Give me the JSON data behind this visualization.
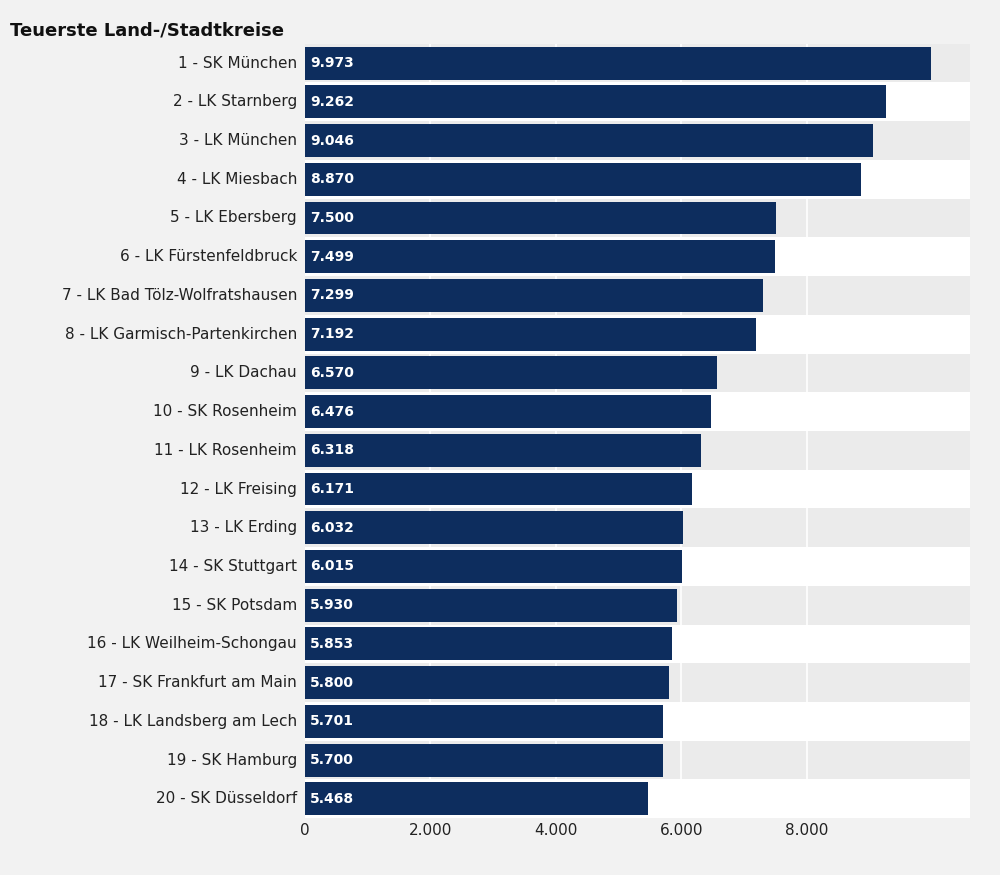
{
  "title": "Teuerste Land-/Stadtkreise",
  "categories": [
    "1 - SK München",
    "2 - LK Starnberg",
    "3 - LK München",
    "4 - LK Miesbach",
    "5 - LK Ebersberg",
    "6 - LK Fürstenfeldbruck",
    "7 - LK Bad Tölz-Wolfratshausen",
    "8 - LK Garmisch-Partenkirchen",
    "9 - LK Dachau",
    "10 - SK Rosenheim",
    "11 - LK Rosenheim",
    "12 - LK Freising",
    "13 - LK Erding",
    "14 - SK Stuttgart",
    "15 - SK Potsdam",
    "16 - LK Weilheim-Schongau",
    "17 - SK Frankfurt am Main",
    "18 - LK Landsberg am Lech",
    "19 - SK Hamburg",
    "20 - SK Düsseldorf"
  ],
  "values": [
    9973,
    9262,
    9046,
    8870,
    7500,
    7499,
    7299,
    7192,
    6570,
    6476,
    6318,
    6171,
    6032,
    6015,
    5930,
    5853,
    5800,
    5701,
    5700,
    5468
  ],
  "value_labels": [
    "9.973",
    "9.262",
    "9.046",
    "8.870",
    "7.500",
    "7.499",
    "7.299",
    "7.192",
    "6.570",
    "6.476",
    "6.318",
    "6.171",
    "6.032",
    "6.015",
    "5.930",
    "5.853",
    "5.800",
    "5.701",
    "5.700",
    "5.468"
  ],
  "bar_color": "#0d2d5e",
  "background_color": "#f2f2f2",
  "bar_row_colors": [
    "#ffffff",
    "#ebebeb"
  ],
  "title_fontsize": 13,
  "label_fontsize": 11,
  "value_fontsize": 10,
  "tick_fontsize": 11,
  "xlim": [
    0,
    10600
  ],
  "xticks": [
    0,
    2000,
    4000,
    6000,
    8000
  ],
  "xtick_labels": [
    "0",
    "2.000",
    "4.000",
    "6.000",
    "8.000"
  ],
  "text_color_inside": "#ffffff",
  "grid_color": "#ffffff",
  "label_color": "#222222"
}
